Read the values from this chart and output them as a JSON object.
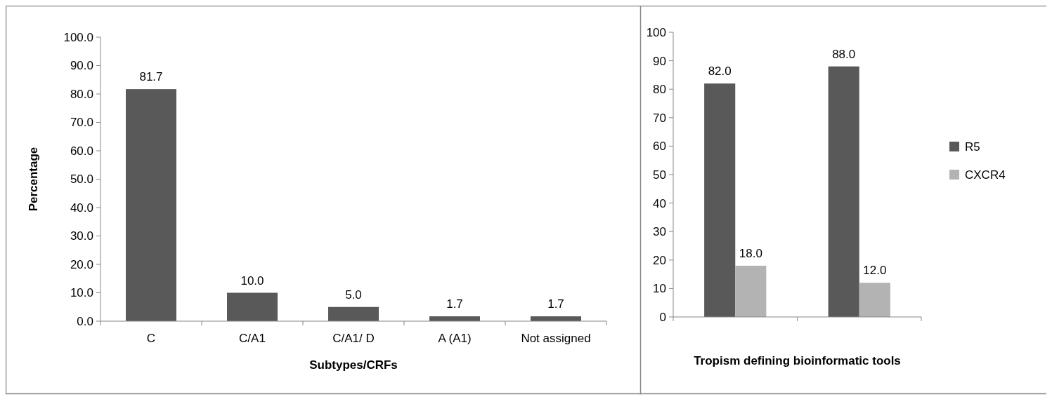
{
  "chart_data": [
    {
      "type": "bar",
      "xlabel": "Subtypes/CRFs",
      "ylabel": "Percentage",
      "categories": [
        "C",
        "C/A1",
        "C/A1/ D",
        "A (A1)",
        "Not assigned"
      ],
      "series": [
        {
          "color": "#595959",
          "values": [
            81.7,
            10.0,
            5.0,
            1.7,
            1.7
          ],
          "value_labels": [
            "81.7",
            "10.0",
            "5.0",
            "1.7",
            "1.7"
          ]
        }
      ],
      "ylim": [
        0,
        100
      ],
      "yticks": [
        {
          "value": 0,
          "label": "0.0"
        },
        {
          "value": 10,
          "label": "10.0"
        },
        {
          "value": 20,
          "label": "20.0"
        },
        {
          "value": 30,
          "label": "30.0"
        },
        {
          "value": 40,
          "label": "40.0"
        },
        {
          "value": 50,
          "label": "50.0"
        },
        {
          "value": 60,
          "label": "60.0"
        },
        {
          "value": 70,
          "label": "70.0"
        },
        {
          "value": 80,
          "label": "80.0"
        },
        {
          "value": 90,
          "label": "90.0"
        },
        {
          "value": 100,
          "label": "100.0"
        }
      ],
      "grid": false,
      "legend": false
    },
    {
      "type": "bar",
      "xlabel": "Tropism defining bioinformatic tools",
      "categories": [
        null,
        null
      ],
      "series": [
        {
          "name": "R5",
          "color": "#595959",
          "values": [
            82.0,
            88.0
          ],
          "value_labels": [
            "82.0",
            "88.0"
          ]
        },
        {
          "name": "CXCR4",
          "color": "#b3b3b3",
          "values": [
            18.0,
            12.0
          ],
          "value_labels": [
            "18.0",
            "12.0"
          ]
        }
      ],
      "ylim": [
        0,
        100
      ],
      "yticks": [
        0,
        10,
        20,
        30,
        40,
        50,
        60,
        70,
        80,
        90,
        100
      ],
      "grid": false,
      "legend": "right"
    }
  ]
}
